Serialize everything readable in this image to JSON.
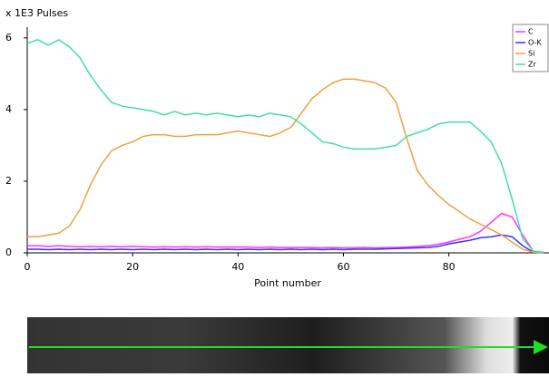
{
  "chart_data": {
    "type": "line",
    "title": "x 1E3 Pulses",
    "xlabel": "Point number",
    "x": [
      0,
      2,
      4,
      6,
      8,
      10,
      12,
      14,
      16,
      18,
      20,
      22,
      24,
      26,
      28,
      30,
      32,
      34,
      36,
      38,
      40,
      42,
      44,
      46,
      48,
      50,
      52,
      54,
      56,
      58,
      60,
      62,
      64,
      66,
      68,
      70,
      72,
      74,
      76,
      78,
      80,
      82,
      84,
      86,
      88,
      90,
      92,
      94,
      96,
      98
    ],
    "series": [
      {
        "name": "C",
        "color": "#ff33ff",
        "values": [
          0.2,
          0.2,
          0.18,
          0.2,
          0.18,
          0.17,
          0.18,
          0.17,
          0.18,
          0.17,
          0.18,
          0.17,
          0.16,
          0.17,
          0.16,
          0.17,
          0.16,
          0.17,
          0.16,
          0.16,
          0.16,
          0.16,
          0.15,
          0.16,
          0.15,
          0.15,
          0.15,
          0.15,
          0.14,
          0.15,
          0.14,
          0.14,
          0.15,
          0.14,
          0.15,
          0.15,
          0.16,
          0.18,
          0.2,
          0.24,
          0.3,
          0.38,
          0.45,
          0.6,
          0.85,
          1.1,
          1.0,
          0.5,
          0.05,
          0.0
        ]
      },
      {
        "name": "O-K",
        "color": "#3333ff",
        "values": [
          0.1,
          0.1,
          0.09,
          0.1,
          0.09,
          0.1,
          0.09,
          0.1,
          0.09,
          0.1,
          0.09,
          0.1,
          0.09,
          0.1,
          0.09,
          0.1,
          0.09,
          0.1,
          0.09,
          0.1,
          0.09,
          0.1,
          0.09,
          0.1,
          0.09,
          0.1,
          0.09,
          0.1,
          0.09,
          0.1,
          0.09,
          0.1,
          0.1,
          0.1,
          0.11,
          0.12,
          0.13,
          0.14,
          0.15,
          0.18,
          0.25,
          0.3,
          0.35,
          0.42,
          0.45,
          0.5,
          0.45,
          0.2,
          0.02,
          0.0
        ]
      },
      {
        "name": "Si",
        "color": "#f0a040",
        "values": [
          0.45,
          0.45,
          0.5,
          0.55,
          0.75,
          1.2,
          1.9,
          2.45,
          2.85,
          3.0,
          3.1,
          3.25,
          3.3,
          3.3,
          3.25,
          3.25,
          3.3,
          3.3,
          3.3,
          3.35,
          3.4,
          3.35,
          3.3,
          3.25,
          3.35,
          3.5,
          3.9,
          4.3,
          4.55,
          4.75,
          4.85,
          4.85,
          4.8,
          4.75,
          4.6,
          4.2,
          3.2,
          2.3,
          1.9,
          1.6,
          1.35,
          1.15,
          0.95,
          0.8,
          0.65,
          0.5,
          0.3,
          0.1,
          0.02,
          0.01
        ]
      },
      {
        "name": "Zr",
        "color": "#40e0a0",
        "values": [
          5.85,
          5.95,
          5.8,
          5.95,
          5.75,
          5.45,
          4.95,
          4.55,
          4.2,
          4.1,
          4.05,
          4.0,
          3.95,
          3.85,
          3.95,
          3.85,
          3.9,
          3.85,
          3.9,
          3.85,
          3.8,
          3.85,
          3.8,
          3.9,
          3.85,
          3.8,
          3.6,
          3.35,
          3.1,
          3.05,
          2.95,
          2.9,
          2.9,
          2.9,
          2.95,
          3.0,
          3.25,
          3.35,
          3.45,
          3.6,
          3.65,
          3.65,
          3.65,
          3.4,
          3.1,
          2.5,
          1.5,
          0.4,
          0.05,
          0.02
        ]
      }
    ],
    "xlim": [
      0,
      99
    ],
    "ylim": [
      0,
      6.3
    ],
    "xticks": [
      0,
      20,
      40,
      60,
      80
    ],
    "yticks": [
      0,
      2,
      4,
      6
    ],
    "legend": "upper right"
  }
}
